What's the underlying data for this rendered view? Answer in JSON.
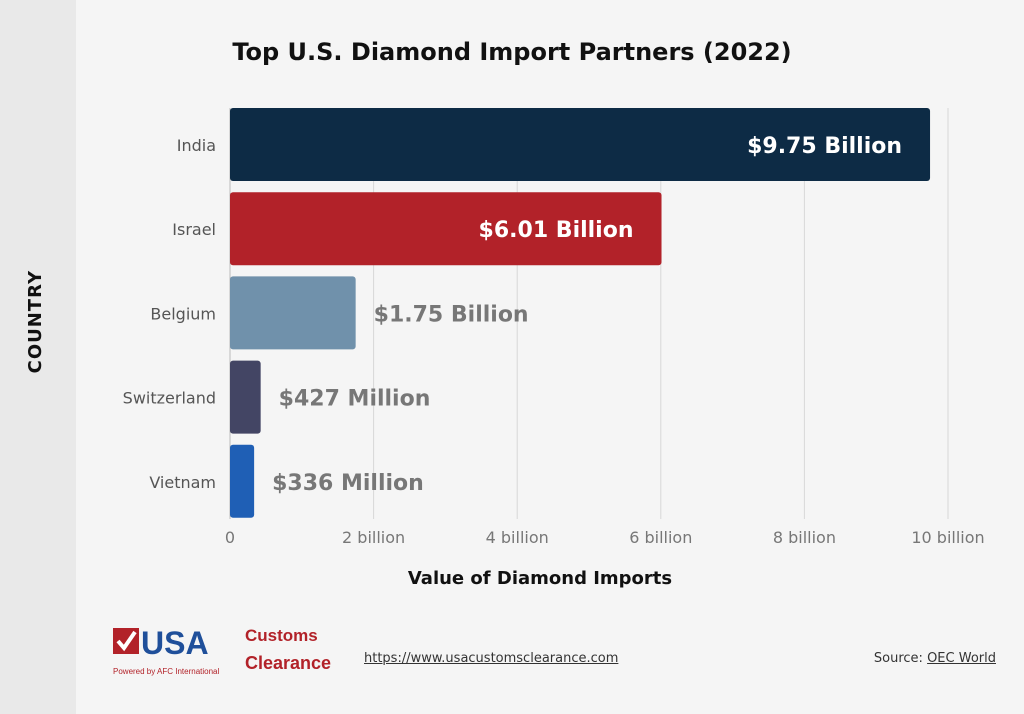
{
  "chart_data": {
    "type": "bar",
    "orientation": "horizontal",
    "title": "Top U.S. Diamond Import Partners (2022)",
    "xlabel": "Value of Diamond Imports",
    "ylabel": "COUNTRY",
    "categories": [
      "India",
      "Israel",
      "Belgium",
      "Switzerland",
      "Vietnam"
    ],
    "values": [
      9.75,
      6.01,
      1.75,
      0.427,
      0.336
    ],
    "unit": "billion USD",
    "data_labels": [
      "$9.75 Billion",
      "$6.01 Billion",
      "$1.75 Billion",
      "$427 Million",
      "$336 Million"
    ],
    "colors": [
      "#0d2b45",
      "#b22229",
      "#7091ab",
      "#434564",
      "#1f5fb5"
    ],
    "xlim": [
      0,
      10
    ],
    "xticks": [
      0,
      2,
      4,
      6,
      8,
      10
    ],
    "xtick_labels": [
      "0",
      "2 billion",
      "4 billion",
      "6 billion",
      "8 billion",
      "10 billion"
    ],
    "grid": "vertical"
  },
  "footer": {
    "logo_text": "USA Customs Clearance",
    "logo_tagline": "Powered by AFC International",
    "url": "https://www.usacustomsclearance.com",
    "source_label": "Source:",
    "source_link": "OEC World"
  }
}
